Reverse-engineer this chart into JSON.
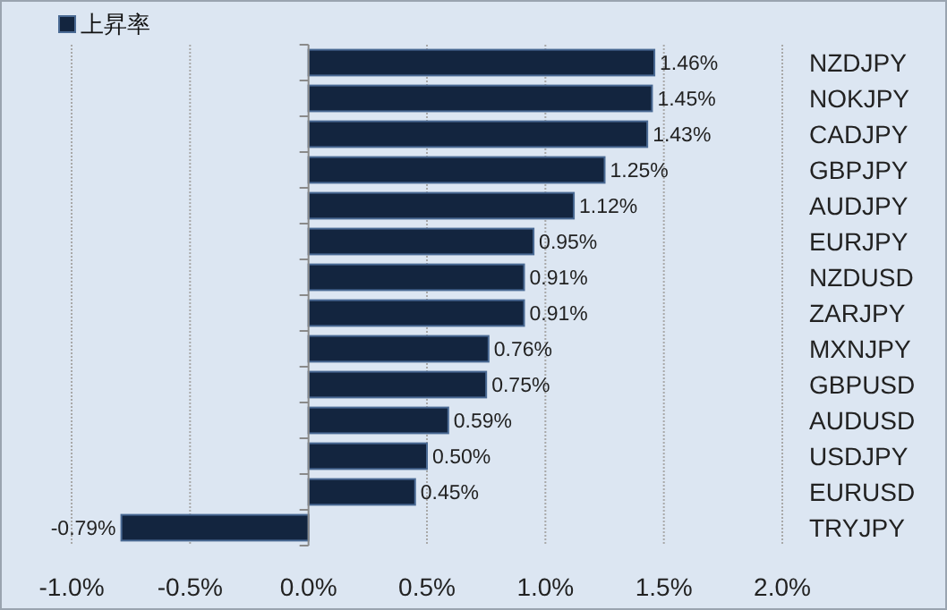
{
  "chart_data": {
    "type": "bar",
    "orientation": "horizontal",
    "categories": [
      "NZDJPY",
      "NOKJPY",
      "CADJPY",
      "GBPJPY",
      "AUDJPY",
      "EURJPY",
      "NZDUSD",
      "ZARJPY",
      "MXNJPY",
      "GBPUSD",
      "AUDUSD",
      "USDJPY",
      "EURUSD",
      "TRYJPY"
    ],
    "series": [
      {
        "name": "上昇率",
        "color": "#13253f",
        "values": [
          1.46,
          1.45,
          1.43,
          1.25,
          1.12,
          0.95,
          0.91,
          0.91,
          0.76,
          0.75,
          0.59,
          0.5,
          0.45,
          -0.79
        ],
        "value_labels": [
          "1.46%",
          "1.45%",
          "1.43%",
          "1.25%",
          "1.12%",
          "0.95%",
          "0.91%",
          "0.91%",
          "0.76%",
          "0.75%",
          "0.59%",
          "0.50%",
          "0.45%",
          "-0.79%"
        ]
      }
    ],
    "xlim": [
      -1.0,
      2.0
    ],
    "xticks": [
      {
        "value": -1.0,
        "label": "-1.0%"
      },
      {
        "value": -0.5,
        "label": "-0.5%"
      },
      {
        "value": 0,
        "label": "0.0%"
      },
      {
        "value": 0.5,
        "label": "0.5%"
      },
      {
        "value": 1.0,
        "label": "1.0%"
      },
      {
        "value": 1.5,
        "label": "1.5%"
      },
      {
        "value": 2.0,
        "label": "2.0%"
      }
    ],
    "grid": "x",
    "legend": "top left"
  }
}
